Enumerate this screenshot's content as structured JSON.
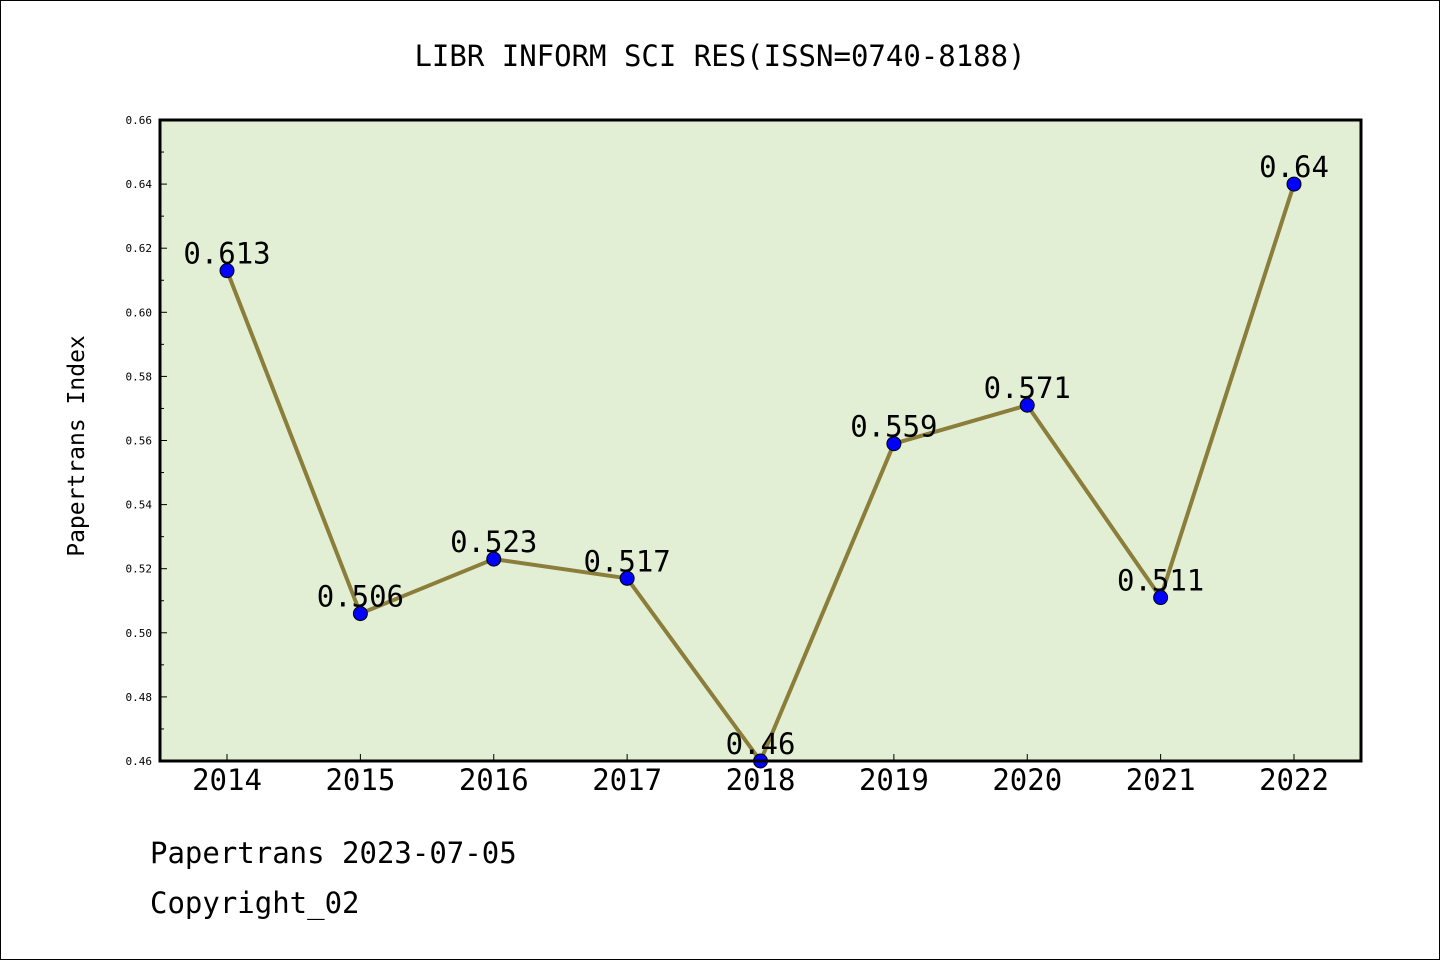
{
  "chart_data": {
    "type": "line",
    "title": "LIBR INFORM SCI RES(ISSN=0740-8188)",
    "xlabel": "",
    "ylabel": "Papertrans Index",
    "categories": [
      "2014",
      "2015",
      "2016",
      "2017",
      "2018",
      "2019",
      "2020",
      "2021",
      "2022"
    ],
    "series": [
      {
        "values": [
          0.613,
          0.506,
          0.523,
          0.517,
          0.46,
          0.559,
          0.571,
          0.511,
          0.64
        ],
        "labels": [
          "0.613",
          "0.506",
          "0.523",
          "0.517",
          "0.46",
          "0.559",
          "0.571",
          "0.511",
          "0.64"
        ]
      }
    ],
    "ylim": [
      0.46,
      0.66
    ],
    "yticks": [
      "0.46",
      "0.48",
      "0.50",
      "0.52",
      "0.54",
      "0.56",
      "0.58",
      "0.60",
      "0.62",
      "0.64",
      "0.66"
    ],
    "grid": false,
    "legend": "none",
    "colors": {
      "line": "#8B7D3A",
      "marker": "#0000FF",
      "plot_background": "#E2EFD5",
      "axes": "#000000"
    }
  },
  "footer": {
    "line1": "Papertrans 2023-07-05",
    "line2": "Copyright_02"
  }
}
